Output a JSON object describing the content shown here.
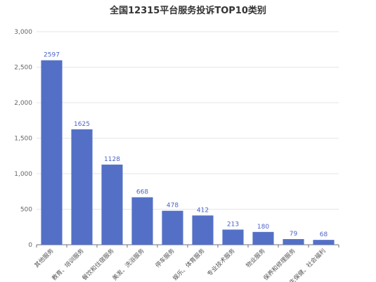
{
  "chart_data": {
    "type": "bar",
    "title": "全国12315平台服务投诉TOP10类别",
    "categories": [
      "其他服务",
      "教育、培训服务",
      "餐饮和住宿服务",
      "美发、洗浴服务",
      "停车服务",
      "娱乐、体育服务",
      "专业技术服务",
      "物业服务",
      "保养和修理服务",
      "卫生保健、社会福利"
    ],
    "values": [
      2597,
      1625,
      1128,
      668,
      478,
      412,
      213,
      180,
      79,
      68
    ],
    "data_labels": [
      "2597",
      "1625",
      "1128",
      "668",
      "478",
      "412",
      "213",
      "180",
      "79",
      "68"
    ],
    "ylim": [
      0,
      3000
    ],
    "yticks": [
      0,
      500,
      1000,
      1500,
      2000,
      2500,
      3000
    ],
    "ytick_labels": [
      "0",
      "500",
      "1,000",
      "1,500",
      "2,000",
      "2,500",
      "3,000"
    ],
    "xlabel": "",
    "ylabel": "",
    "grid": true,
    "bar_color": "#5470c6",
    "label_color": "#4b63c7"
  }
}
